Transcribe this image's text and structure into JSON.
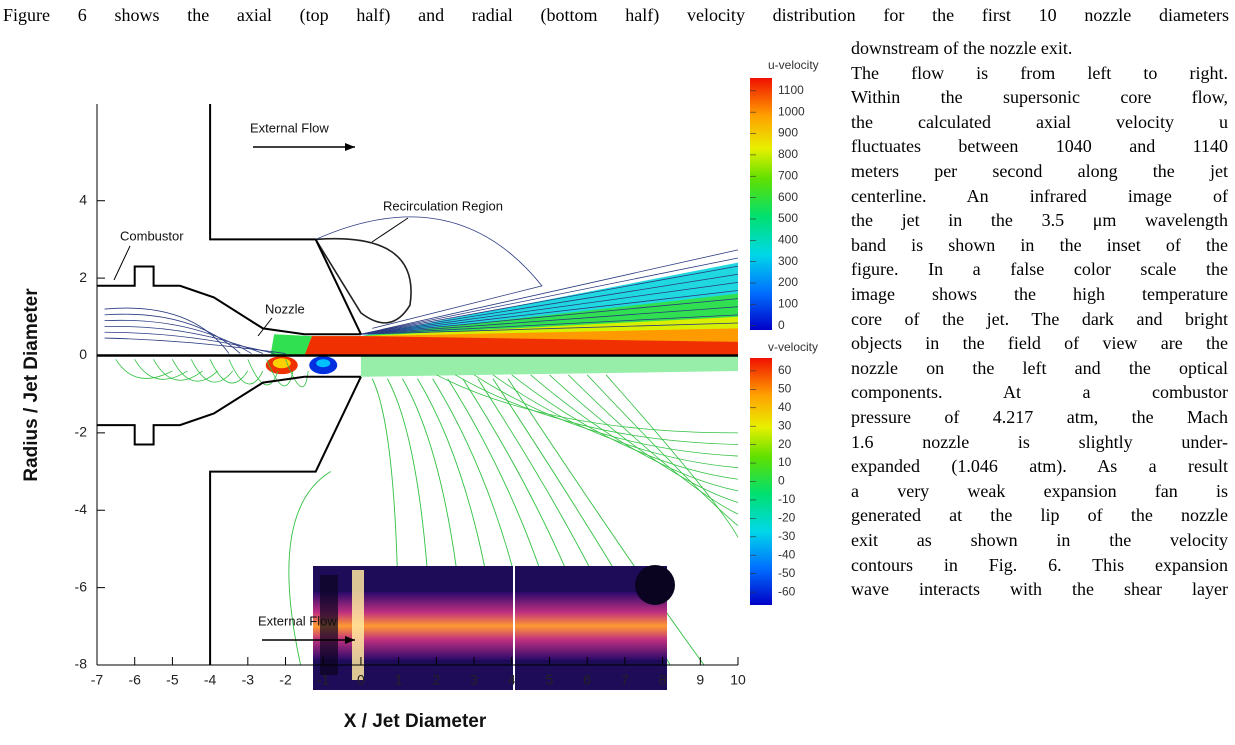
{
  "paragraph": {
    "lines": [
      "Figure 6 shows the axial (top half) and radial (bottom half) velocity distribution for the first 10 nozzle diameters",
      "downstream of the nozzle exit.",
      "The flow is from left to right.",
      "Within the supersonic core flow,",
      "the calculated axial velocity u",
      "fluctuates between 1040 and 1140",
      "meters per second along the jet",
      "centerline. An infrared image of",
      "the jet in the 3.5 μm wavelength",
      "band is shown in the inset of the",
      "figure. In a false color scale the",
      "image shows the high temperature",
      "core of the jet. The dark and bright",
      "objects in the field of view are the",
      "nozzle on the left and the optical",
      "components. At a combustor",
      "pressure of 4.217 atm, the Mach",
      "1.6 nozzle is slightly under-",
      "expanded (1.046 atm). As a result",
      "a very weak expansion fan is",
      "generated at the lip of the nozzle",
      "exit as shown in the velocity",
      "contours in Fig. 6. This expansion",
      "wave interacts with the shear layer"
    ]
  },
  "figure": {
    "x_axis_label": "X / Jet Diameter",
    "y_axis_label": "Radius / Jet Diameter",
    "xlim": [
      -7,
      10
    ],
    "xticks": [
      -7,
      -6,
      -5,
      -4,
      -3,
      -2,
      -1,
      0,
      1,
      2,
      3,
      4,
      5,
      6,
      7,
      8,
      9,
      10
    ],
    "ylim": [
      -8,
      6.5
    ],
    "yticks": [
      -8,
      -6,
      -4,
      -2,
      0,
      2,
      4
    ],
    "annotations": [
      "External Flow",
      "Recirculation Region",
      "Combustor",
      "Nozzle",
      "External Flow"
    ],
    "colorbars": [
      {
        "title": "u-velocity",
        "lim": [
          -20,
          1160
        ],
        "ticks": [
          0,
          100,
          200,
          300,
          400,
          500,
          600,
          700,
          800,
          900,
          1000,
          1100
        ]
      },
      {
        "title": "v-velocity",
        "lim": [
          -67,
          67
        ],
        "ticks": [
          -60,
          -50,
          -40,
          -30,
          -20,
          -10,
          0,
          10,
          20,
          30,
          40,
          50,
          60
        ]
      }
    ]
  }
}
